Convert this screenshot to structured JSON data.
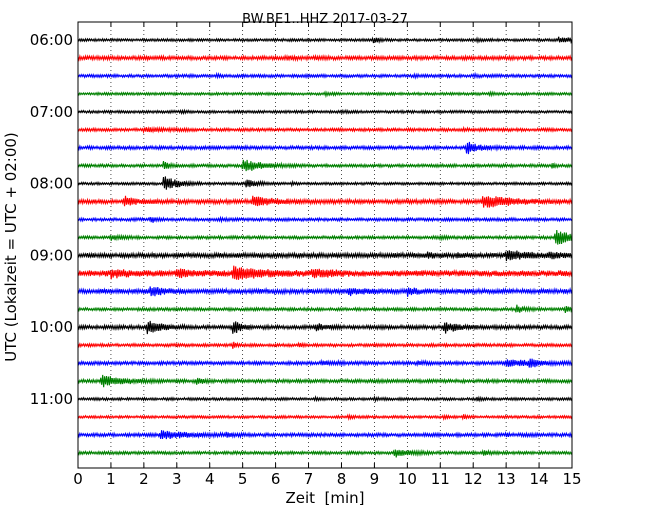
{
  "chart_data": {
    "type": "line",
    "title": "BW.BE1..HHZ 2017-03-27",
    "xlabel": "Zeit  [min]",
    "ylabel": "UTC (Lokalzeit = UTC + 02:00)",
    "xlim": [
      0,
      15
    ],
    "x_ticks": [
      "0",
      "1",
      "2",
      "3",
      "4",
      "5",
      "6",
      "7",
      "8",
      "9",
      "10",
      "11",
      "12",
      "13",
      "14",
      "15"
    ],
    "y_tick_labels": [
      "06:00",
      "07:00",
      "08:00",
      "09:00",
      "10:00",
      "11:00"
    ],
    "grid": "vertical dotted",
    "colors": [
      "#000000",
      "#ff0000",
      "#0000ff",
      "#008000"
    ],
    "trace_row_times": [
      "06:00",
      "06:15",
      "06:30",
      "06:45",
      "07:00",
      "07:15",
      "07:30",
      "07:45",
      "08:00",
      "08:15",
      "08:30",
      "08:45",
      "09:00",
      "09:15",
      "09:30",
      "09:45",
      "10:00",
      "10:15",
      "10:30",
      "10:45",
      "11:00",
      "11:15",
      "11:30",
      "11:45"
    ],
    "trace_noise_amplitude": [
      0.3,
      0.45,
      0.35,
      0.3,
      0.3,
      0.35,
      0.4,
      0.35,
      0.3,
      0.5,
      0.35,
      0.35,
      0.55,
      0.7,
      0.55,
      0.35,
      0.45,
      0.35,
      0.4,
      0.4,
      0.3,
      0.3,
      0.4,
      0.35
    ],
    "events": [
      [
        [
          8.95,
          1.0,
          0.15
        ],
        [
          14.6,
          0.8,
          0.6
        ],
        [
          12.1,
          0.3,
          0.3
        ]
      ],
      [
        [
          6.3,
          0.3,
          0.5
        ],
        [
          2.0,
          0.2,
          0.3
        ]
      ],
      [
        [
          4.2,
          0.45,
          0.15
        ],
        [
          10.2,
          0.35,
          0.15
        ],
        [
          12.0,
          0.35,
          0.2
        ]
      ],
      [
        [
          7.5,
          0.35,
          0.2
        ],
        [
          12.5,
          0.4,
          0.15
        ]
      ],
      [
        [
          3.1,
          0.3,
          0.15
        ],
        [
          8.0,
          0.3,
          0.15
        ]
      ],
      [
        [
          2.0,
          0.6,
          0.6
        ],
        [
          11.7,
          0.3,
          0.15
        ]
      ],
      [
        [
          11.8,
          2.0,
          0.35
        ]
      ],
      [
        [
          2.6,
          1.5,
          0.15
        ],
        [
          5.0,
          2.0,
          0.6
        ],
        [
          14.4,
          0.8,
          0.1
        ]
      ],
      [
        [
          2.6,
          2.6,
          0.4
        ],
        [
          5.1,
          1.3,
          0.3
        ],
        [
          6.5,
          0.45,
          0.1
        ]
      ],
      [
        [
          1.4,
          1.6,
          0.35
        ],
        [
          5.3,
          1.7,
          0.6
        ],
        [
          12.3,
          2.0,
          0.8
        ]
      ],
      [
        [
          2.2,
          1.1,
          0.15
        ],
        [
          4.3,
          0.25,
          0.15
        ]
      ],
      [
        [
          1.0,
          1.1,
          0.3
        ],
        [
          11.0,
          0.35,
          0.15
        ],
        [
          14.5,
          2.5,
          0.55
        ]
      ],
      [
        [
          10.6,
          0.8,
          0.2
        ],
        [
          11.5,
          0.6,
          0.2
        ],
        [
          13.0,
          1.6,
          0.6
        ],
        [
          14.3,
          0.7,
          0.3
        ]
      ],
      [
        [
          1.0,
          1.2,
          0.5
        ],
        [
          3.0,
          1.1,
          0.5
        ],
        [
          4.7,
          2.0,
          0.8
        ],
        [
          7.1,
          1.1,
          0.6
        ]
      ],
      [
        [
          2.2,
          1.7,
          0.35
        ],
        [
          8.2,
          1.1,
          0.4
        ],
        [
          10.0,
          1.3,
          0.25
        ]
      ],
      [
        [
          13.3,
          1.5,
          0.2
        ],
        [
          14.8,
          1.1,
          0.15
        ]
      ],
      [
        [
          2.1,
          2.2,
          0.4
        ],
        [
          4.7,
          2.8,
          0.2
        ],
        [
          7.2,
          1.3,
          0.25
        ],
        [
          11.1,
          1.9,
          0.4
        ]
      ],
      [
        [
          4.7,
          0.9,
          0.1
        ],
        [
          6.7,
          0.8,
          0.1
        ]
      ],
      [
        [
          7.4,
          0.6,
          0.4
        ],
        [
          10.3,
          0.5,
          0.3
        ],
        [
          13.0,
          1.2,
          0.7
        ],
        [
          13.7,
          1.5,
          0.25
        ]
      ],
      [
        [
          0.7,
          2.0,
          0.6
        ],
        [
          3.6,
          1.2,
          0.15
        ]
      ],
      [
        [
          7.2,
          0.45,
          0.15
        ],
        [
          9.0,
          0.35,
          0.15
        ],
        [
          12.1,
          0.5,
          0.15
        ]
      ],
      [
        [
          8.2,
          0.4,
          0.15
        ],
        [
          11.1,
          0.45,
          0.15
        ],
        [
          11.7,
          0.6,
          0.15
        ]
      ],
      [
        [
          2.5,
          1.5,
          0.7
        ],
        [
          4.5,
          0.6,
          0.3
        ],
        [
          13.0,
          0.35,
          0.1
        ]
      ],
      [
        [
          9.6,
          1.4,
          0.4
        ],
        [
          12.3,
          0.8,
          0.15
        ]
      ]
    ]
  }
}
